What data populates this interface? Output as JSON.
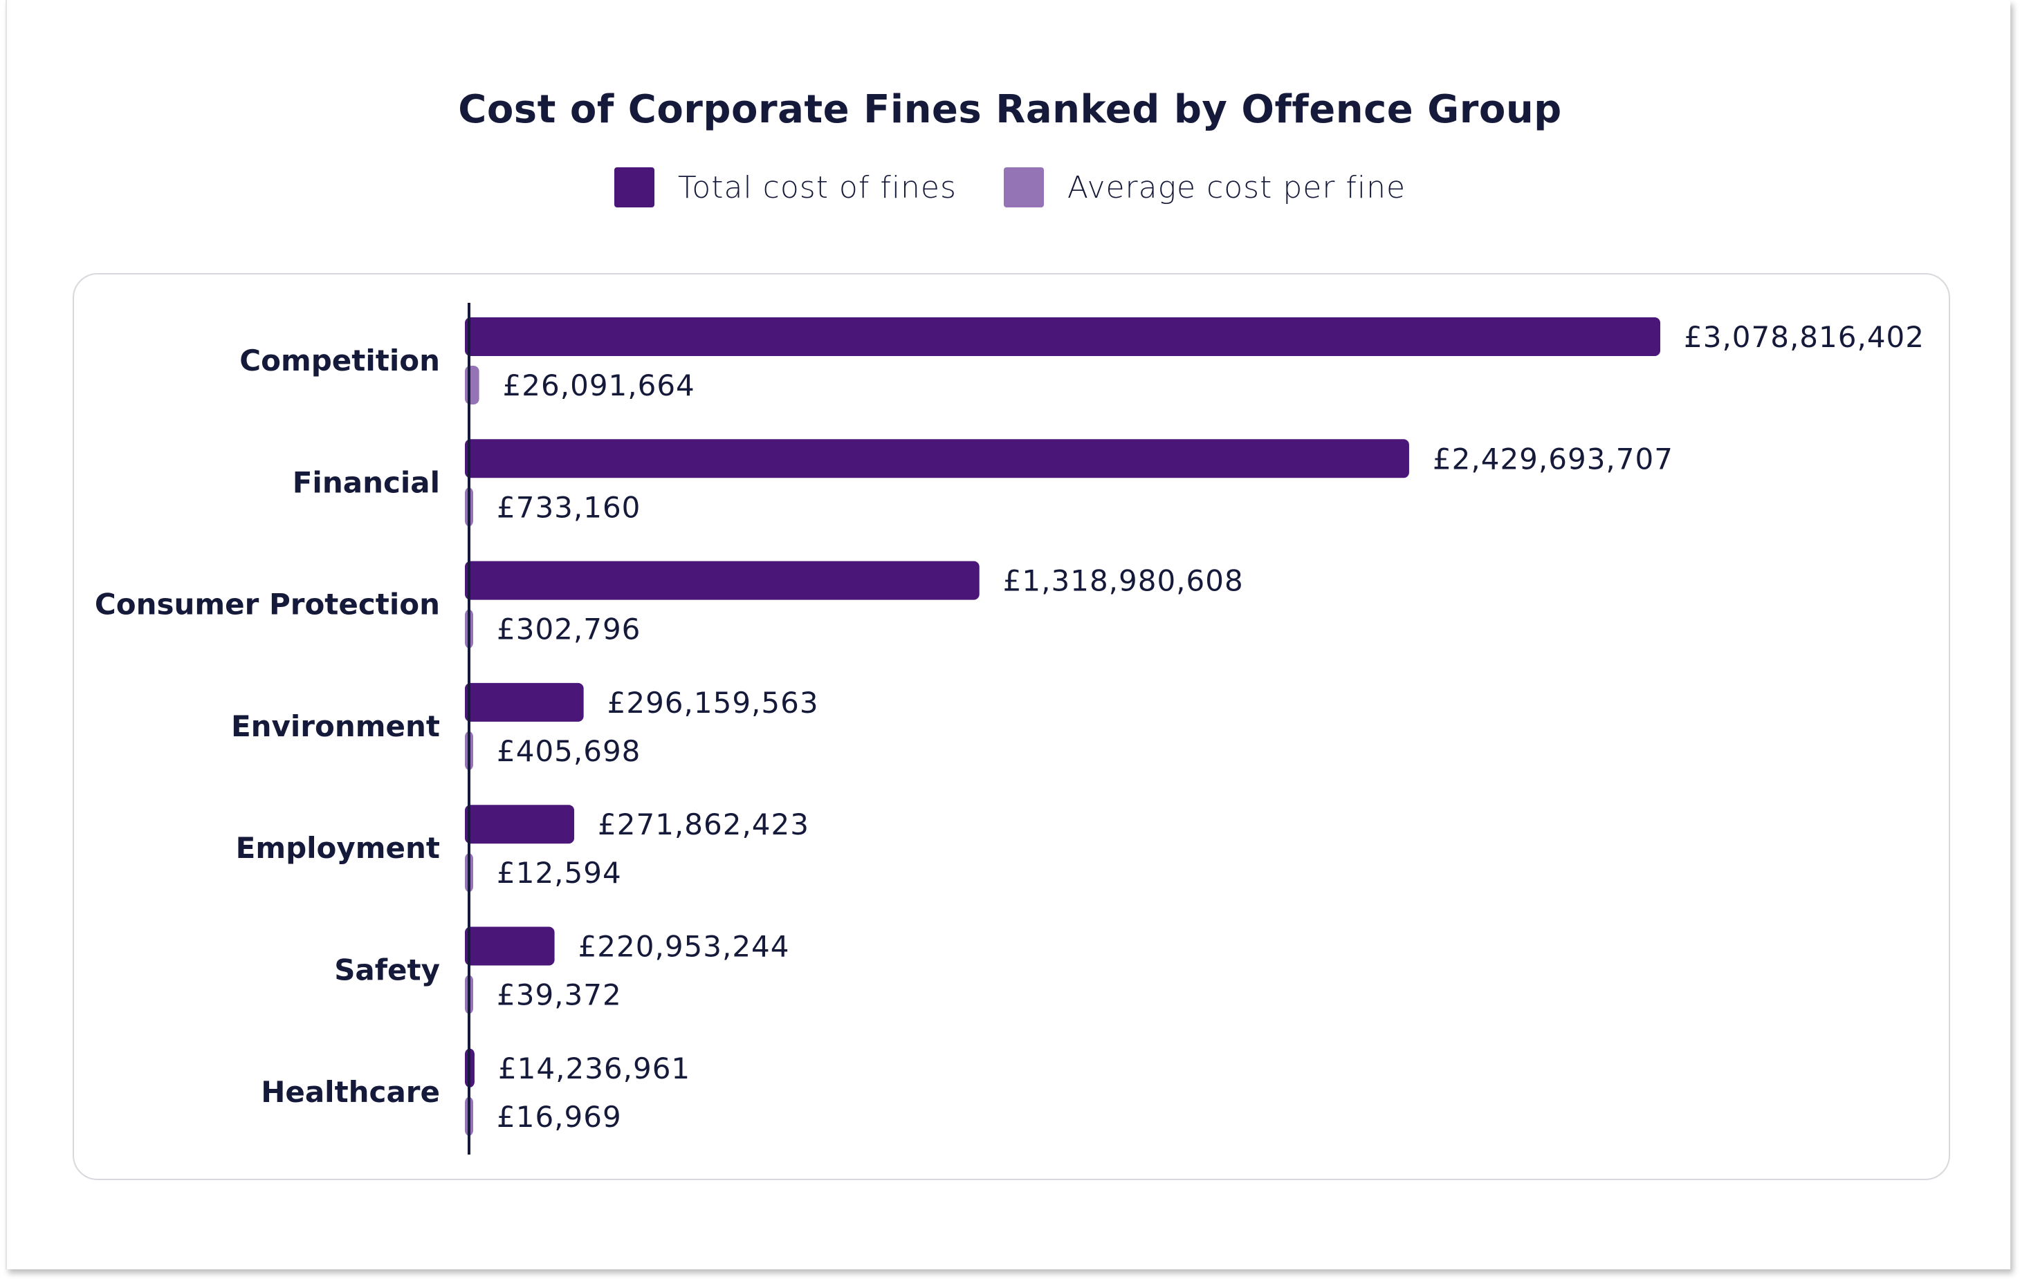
{
  "chart_data": {
    "type": "bar",
    "orientation": "horizontal",
    "title": "Cost of Corporate Fines Ranked by Offence Group",
    "xlabel": "",
    "ylabel": "",
    "grid": false,
    "legend_position": "top-center",
    "categories": [
      "Competition",
      "Financial",
      "Consumer Protection",
      "Environment",
      "Employment",
      "Safety",
      "Healthcare"
    ],
    "series": [
      {
        "name": "Total cost of fines",
        "color": "#4a1678",
        "values": [
          3078816402,
          2429693707,
          1318980608,
          296159563,
          271862423,
          220953244,
          14236961
        ],
        "labels": [
          "£3,078,816,402",
          "£2,429,693,707",
          "£1,318,980,608",
          "£296,159,563",
          "£271,862,423",
          "£220,953,244",
          "£14,236,961"
        ]
      },
      {
        "name": "Average cost per fine",
        "color": "#9474b4",
        "values": [
          26091664,
          733160,
          302796,
          405698,
          12594,
          39372,
          16969
        ],
        "labels": [
          "£26,091,664",
          "£733,160",
          "£302,796",
          "£405,698",
          "£12,594",
          "£39,372",
          "£16,969"
        ]
      }
    ]
  }
}
